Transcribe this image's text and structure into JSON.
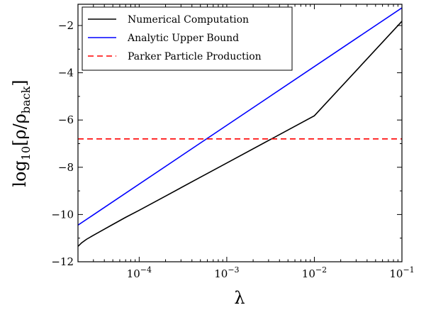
{
  "chart_data": {
    "type": "line",
    "xscale": "log",
    "xlim": [
      2e-05,
      0.1
    ],
    "ylim": [
      -12,
      -1.1
    ],
    "xticks": [
      {
        "value": 0.0001,
        "base": "10",
        "exp": "−4"
      },
      {
        "value": 0.001,
        "base": "10",
        "exp": "−3"
      },
      {
        "value": 0.01,
        "base": "10",
        "exp": "−2"
      },
      {
        "value": 0.1,
        "base": "10",
        "exp": "−1"
      }
    ],
    "yticks": [
      {
        "value": -12,
        "label": "−12"
      },
      {
        "value": -10,
        "label": "−10"
      },
      {
        "value": -8,
        "label": "−8"
      },
      {
        "value": -6,
        "label": "−6"
      },
      {
        "value": -4,
        "label": "−4"
      },
      {
        "value": -2,
        "label": "−2"
      }
    ],
    "xlabel": "λ",
    "ylabel": {
      "main": "log",
      "sub": "10",
      "expr": "[ρ/ρ",
      "sub2": "back",
      "close": "]"
    },
    "grid": false,
    "legend_position": "top-left",
    "series": [
      {
        "name": "Numerical Computation",
        "color": "#000000",
        "dash": "solid",
        "x": [
          2e-05,
          2.2e-05,
          2.5e-05,
          3e-05,
          3.5e-05,
          4e-05,
          5e-05,
          7e-05,
          0.0001,
          0.0002,
          0.0005,
          0.001,
          0.01,
          0.1
        ],
        "y": [
          -11.35,
          -11.2,
          -11.05,
          -10.88,
          -10.74,
          -10.62,
          -10.42,
          -10.12,
          -9.82,
          -9.22,
          -8.42,
          -7.82,
          -5.82,
          -1.82
        ]
      },
      {
        "name": "Analytic Upper Bound",
        "color": "#0000ff",
        "dash": "solid",
        "x": [
          2e-05,
          0.1
        ],
        "y": [
          -10.45,
          -1.25
        ]
      },
      {
        "name": "Parker Particle Production",
        "color": "#ff0000",
        "dash": "dashed",
        "x": [
          2e-05,
          0.1
        ],
        "y": [
          -6.8,
          -6.8
        ]
      }
    ]
  }
}
